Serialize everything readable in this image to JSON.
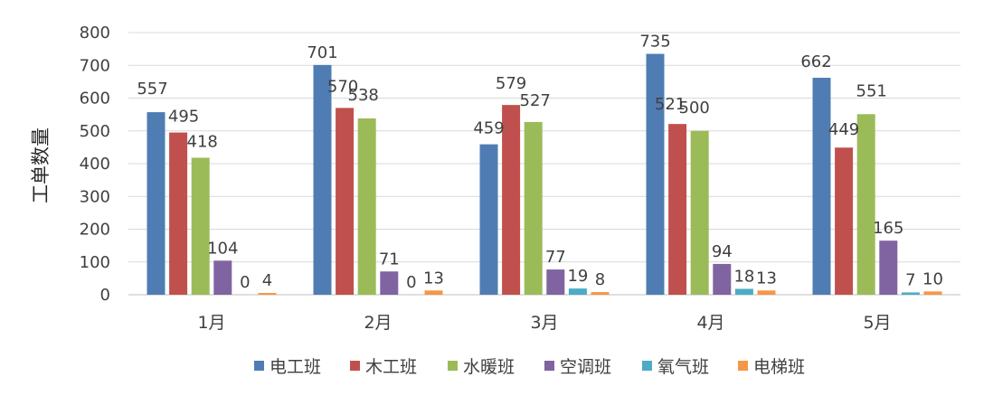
{
  "chart_data": {
    "type": "bar",
    "title": "",
    "xlabel": "",
    "ylabel": "工单数量",
    "ylim": [
      0,
      800
    ],
    "yticks": [
      0,
      100,
      200,
      300,
      400,
      500,
      600,
      700,
      800
    ],
    "grid": true,
    "legend_position": "bottom",
    "categories": [
      "1月",
      "2月",
      "3月",
      "4月",
      "5月"
    ],
    "series": [
      {
        "name": "电工班",
        "color": "#4F7DB3",
        "values": [
          557,
          701,
          459,
          735,
          662
        ]
      },
      {
        "name": "木工班",
        "color": "#C0504D",
        "values": [
          495,
          570,
          579,
          521,
          449
        ]
      },
      {
        "name": "水暖班",
        "color": "#9BBB59",
        "values": [
          418,
          538,
          527,
          500,
          551
        ]
      },
      {
        "name": "空调班",
        "color": "#8064A2",
        "values": [
          104,
          71,
          77,
          94,
          165
        ]
      },
      {
        "name": "氧气班",
        "color": "#4BACC6",
        "values": [
          0,
          0,
          19,
          18,
          7
        ]
      },
      {
        "name": "电梯班",
        "color": "#F79646",
        "values": [
          4,
          13,
          8,
          13,
          10
        ]
      }
    ]
  }
}
